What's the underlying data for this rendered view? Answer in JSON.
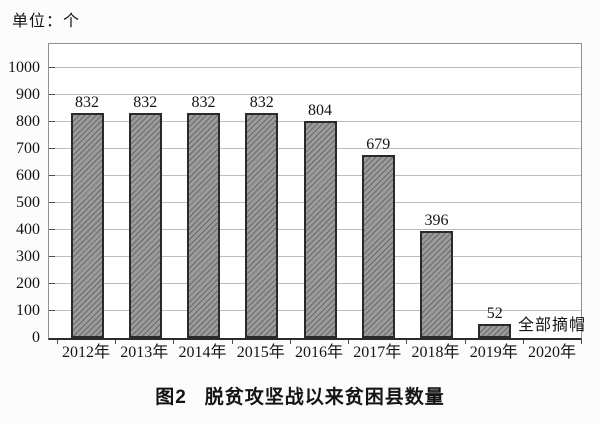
{
  "page": {
    "background": "#fcfcfc"
  },
  "chart_data": {
    "type": "bar",
    "title_prefix": "图2",
    "title_main": "脱贫攻坚战以来贫困县数量",
    "title_full": "图2 脱贫攻坚战以来贫困县数量",
    "unit_label": "单位：个",
    "categories": [
      "2012年",
      "2013年",
      "2014年",
      "2015年",
      "2016年",
      "2017年",
      "2018年",
      "2019年",
      "2020年"
    ],
    "values": [
      832,
      832,
      832,
      832,
      804,
      679,
      396,
      52,
      null
    ],
    "bar_value_labels": [
      "832",
      "832",
      "832",
      "832",
      "804",
      "679",
      "396",
      "52",
      ""
    ],
    "annotation": {
      "text": "全部摘帽",
      "category": "2020年",
      "category_index": 8
    },
    "ylabel": "",
    "xlabel": "",
    "ylim": [
      0,
      1100
    ],
    "yticks": [
      0,
      100,
      200,
      300,
      400,
      500,
      600,
      700,
      800,
      900,
      1000
    ],
    "grid": true,
    "legend": "none",
    "colors": {
      "bar_fill": "#9b9b9b",
      "bar_hatch": "#6a6a6a",
      "bar_border": "#2a2a2a",
      "gridline": "#bdbdbd",
      "frame": "#8f8f8f",
      "axis": "#2b2b2b",
      "text": "#141414",
      "background": "#fcfcfc"
    }
  }
}
